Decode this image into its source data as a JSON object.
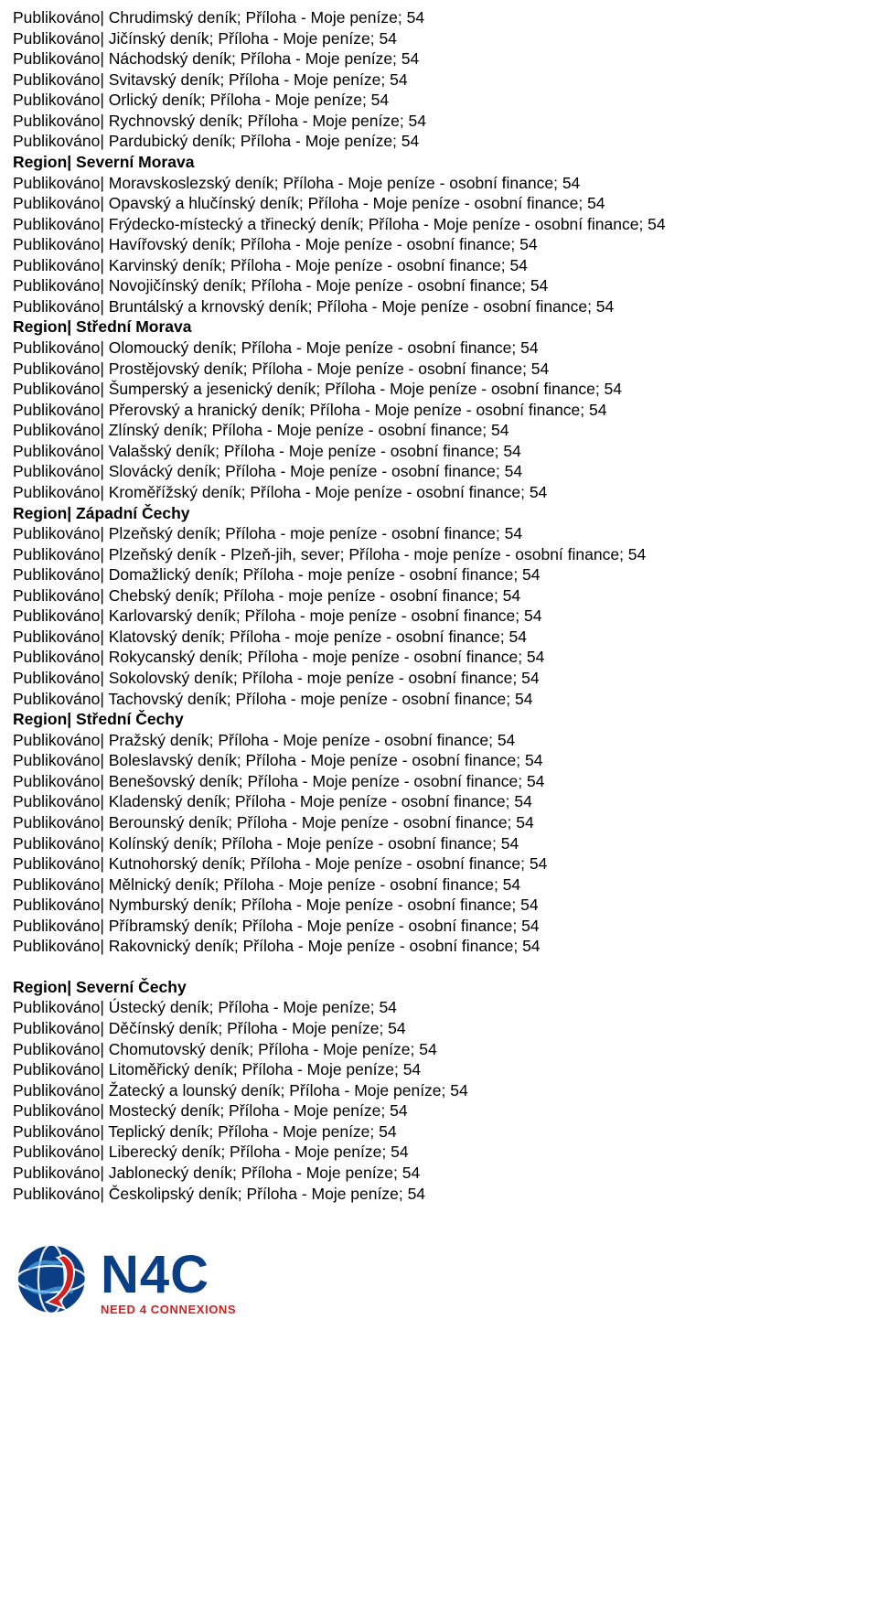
{
  "blocks": [
    {
      "lines": [
        "Publikováno| Chrudimský deník; Příloha - Moje peníze; 54",
        "Publikováno| Jičínský deník; Příloha - Moje peníze; 54",
        "Publikováno| Náchodský deník; Příloha - Moje peníze; 54",
        "Publikováno| Svitavský deník; Příloha - Moje peníze; 54",
        "Publikováno| Orlický deník; Příloha - Moje peníze; 54",
        "Publikováno| Rychnovský deník; Příloha - Moje peníze; 54",
        "Publikováno| Pardubický deník; Příloha - Moje peníze; 54"
      ],
      "region": "Region| Severní Morava"
    },
    {
      "lines": [
        "Publikováno| Moravskoslezský deník; Příloha - Moje peníze - osobní finance; 54",
        "Publikováno| Opavský a hlučínský deník; Příloha - Moje peníze - osobní finance; 54",
        "Publikováno| Frýdecko-místecký a třinecký deník; Příloha - Moje peníze - osobní finance; 54",
        "Publikováno| Havířovský deník; Příloha - Moje peníze - osobní finance; 54",
        "Publikováno| Karvinský deník; Příloha - Moje peníze - osobní finance; 54",
        "Publikováno| Novojičínský deník; Příloha - Moje peníze - osobní finance; 54",
        "Publikováno| Bruntálský a krnovský deník; Příloha - Moje peníze - osobní finance; 54"
      ],
      "region": "Region| Střední Morava"
    },
    {
      "lines": [
        "Publikováno| Olomoucký deník; Příloha - Moje peníze - osobní finance; 54",
        "Publikováno| Prostějovský deník; Příloha - Moje peníze - osobní finance; 54",
        "Publikováno| Šumperský a jesenický deník; Příloha - Moje peníze - osobní finance; 54",
        "Publikováno| Přerovský a hranický deník; Příloha - Moje peníze - osobní finance; 54",
        "Publikováno| Zlínský deník; Příloha - Moje peníze - osobní finance; 54",
        "Publikováno| Valašský deník; Příloha - Moje peníze - osobní finance; 54",
        "Publikováno| Slovácký deník; Příloha - Moje peníze - osobní finance; 54",
        "Publikováno| Kroměřížský deník; Příloha - Moje peníze - osobní finance; 54"
      ],
      "region": "Region| Západní Čechy"
    },
    {
      "lines": [
        "Publikováno| Plzeňský deník; Příloha - moje peníze - osobní finance; 54",
        "Publikováno| Plzeňský deník - Plzeň-jih, sever; Příloha - moje peníze - osobní finance; 54",
        "Publikováno| Domažlický deník; Příloha - moje peníze - osobní finance; 54",
        "Publikováno| Chebský deník; Příloha - moje peníze - osobní finance; 54",
        "Publikováno| Karlovarský deník; Příloha - moje peníze - osobní finance; 54",
        "Publikováno| Klatovský deník; Příloha - moje peníze - osobní finance; 54",
        "Publikováno| Rokycanský deník; Příloha - moje peníze - osobní finance; 54",
        "Publikováno| Sokolovský deník; Příloha - moje peníze - osobní finance; 54",
        "Publikováno| Tachovský deník; Příloha - moje peníze - osobní finance; 54"
      ],
      "region": "Region| Střední Čechy"
    },
    {
      "lines": [
        "Publikováno| Pražský deník; Příloha - Moje peníze - osobní finance; 54",
        "Publikováno| Boleslavský deník; Příloha - Moje peníze - osobní finance; 54",
        "Publikováno| Benešovský deník; Příloha - Moje peníze - osobní finance; 54",
        "Publikováno| Kladenský deník; Příloha - Moje peníze - osobní finance; 54",
        "Publikováno| Berounský deník; Příloha - Moje peníze - osobní finance; 54",
        "Publikováno| Kolínský deník; Příloha - Moje peníze - osobní finance; 54",
        "Publikováno| Kutnohorský deník; Příloha - Moje peníze - osobní finance; 54",
        "Publikováno| Mělnický deník; Příloha - Moje peníze - osobní finance; 54",
        "Publikováno| Nymburský deník; Příloha - Moje peníze - osobní finance; 54",
        "Publikováno| Příbramský deník; Příloha - Moje peníze - osobní finance; 54",
        "Publikováno| Rakovnický deník; Příloha - Moje peníze - osobní finance; 54"
      ],
      "region": null
    }
  ],
  "secondSection": {
    "region": "Region| Severní Čechy",
    "lines": [
      "Publikováno| Ústecký deník; Příloha - Moje peníze; 54",
      "Publikováno| Děčínský deník; Příloha - Moje peníze; 54",
      "Publikováno| Chomutovský deník; Příloha - Moje peníze; 54",
      "Publikováno| Litoměřický deník; Příloha - Moje peníze; 54",
      "Publikováno| Žatecký a lounský deník; Příloha - Moje peníze; 54",
      "Publikováno| Mostecký deník; Příloha - Moje peníze; 54",
      "Publikováno| Teplický deník; Příloha - Moje peníze; 54",
      "Publikováno| Liberecký deník; Příloha - Moje peníze; 54",
      "Publikováno| Jablonecký deník; Příloha - Moje peníze; 54",
      "Publikováno| Českolipský deník; Příloha - Moje peníze; 54"
    ]
  },
  "logo": {
    "brand_top": "N4C",
    "brand_sub": "NEED 4 CONNEXIONS",
    "colors": {
      "blue": "#0a3f86",
      "red": "#d42020",
      "light_blue": "#4fa8e8",
      "white": "#ffffff"
    }
  }
}
